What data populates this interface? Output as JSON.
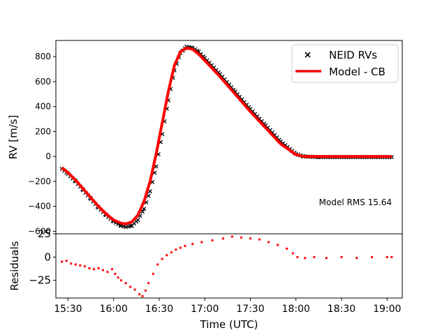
{
  "chart_data": [
    {
      "panel": "main",
      "type": "scatter+line",
      "xlabel": "",
      "ylabel": "RV [m/s]",
      "xlim": [
        "15:22",
        "19:10"
      ],
      "ylim": [
        -620,
        930
      ],
      "y_ticks": [
        -600,
        -400,
        -200,
        0,
        200,
        400,
        600,
        800
      ],
      "y_tick_labels": [
        "−600",
        "−400",
        "−200",
        "0",
        "200",
        "400",
        "600",
        "800"
      ],
      "annotation": "Model RMS 15.64",
      "legend": {
        "placement": "top-right",
        "entries": [
          "NEID RVs",
          "Model - CB"
        ]
      },
      "series": [
        {
          "name": "NEID RVs",
          "marker": "x",
          "color": "#000000",
          "points": [
            [
              "15:26",
              -100
            ],
            [
              "15:30",
              -140
            ],
            [
              "15:35",
              -200
            ],
            [
              "15:40",
              -270
            ],
            [
              "15:45",
              -340
            ],
            [
              "15:50",
              -410
            ],
            [
              "15:55",
              -470
            ],
            [
              "16:00",
              -520
            ],
            [
              "16:05",
              -555
            ],
            [
              "16:08",
              -565
            ],
            [
              "16:12",
              -555
            ],
            [
              "16:16",
              -510
            ],
            [
              "16:20",
              -420
            ],
            [
              "16:24",
              -280
            ],
            [
              "16:28",
              -80
            ],
            [
              "16:32",
              180
            ],
            [
              "16:36",
              450
            ],
            [
              "16:40",
              690
            ],
            [
              "16:44",
              830
            ],
            [
              "16:48",
              880
            ],
            [
              "16:52",
              870
            ],
            [
              "16:56",
              840
            ],
            [
              "17:00",
              790
            ],
            [
              "17:10",
              660
            ],
            [
              "17:20",
              520
            ],
            [
              "17:30",
              380
            ],
            [
              "17:40",
              250
            ],
            [
              "17:50",
              120
            ],
            [
              "18:00",
              20
            ],
            [
              "18:05",
              0
            ],
            [
              "18:15",
              -5
            ],
            [
              "18:30",
              -5
            ],
            [
              "18:45",
              -5
            ],
            [
              "19:00",
              -5
            ],
            [
              "19:03",
              -5
            ]
          ]
        },
        {
          "name": "Model - CB",
          "marker": "line",
          "color": "#ff0000",
          "points": [
            [
              "15:26",
              -90
            ],
            [
              "15:30",
              -130
            ],
            [
              "15:35",
              -190
            ],
            [
              "15:40",
              -260
            ],
            [
              "15:45",
              -330
            ],
            [
              "15:50",
              -400
            ],
            [
              "15:55",
              -460
            ],
            [
              "16:00",
              -510
            ],
            [
              "16:05",
              -535
            ],
            [
              "16:08",
              -540
            ],
            [
              "16:12",
              -525
            ],
            [
              "16:16",
              -470
            ],
            [
              "16:20",
              -360
            ],
            [
              "16:24",
              -200
            ],
            [
              "16:28",
              20
            ],
            [
              "16:32",
              270
            ],
            [
              "16:36",
              520
            ],
            [
              "16:40",
              730
            ],
            [
              "16:44",
              840
            ],
            [
              "16:48",
              870
            ],
            [
              "16:52",
              860
            ],
            [
              "16:56",
              820
            ],
            [
              "17:00",
              770
            ],
            [
              "17:10",
              640
            ],
            [
              "17:20",
              500
            ],
            [
              "17:30",
              360
            ],
            [
              "17:40",
              230
            ],
            [
              "17:50",
              100
            ],
            [
              "18:00",
              15
            ],
            [
              "18:05",
              0
            ],
            [
              "18:15",
              0
            ],
            [
              "18:30",
              0
            ],
            [
              "18:45",
              0
            ],
            [
              "19:00",
              0
            ],
            [
              "19:03",
              0
            ]
          ]
        }
      ]
    },
    {
      "panel": "residuals",
      "type": "scatter",
      "xlabel": "Time (UTC)",
      "ylabel": "Residuals",
      "xlim": [
        "15:22",
        "19:10"
      ],
      "ylim": [
        -44,
        25
      ],
      "y_ticks": [
        -25,
        0,
        25
      ],
      "y_tick_labels": [
        "−25",
        "0",
        "25"
      ],
      "x_ticks": [
        "15:30",
        "16:00",
        "16:30",
        "17:00",
        "17:30",
        "18:00",
        "18:30",
        "19:00"
      ],
      "series": [
        {
          "name": "Residuals",
          "marker": "square",
          "color": "#ff0000",
          "points": [
            [
              "15:26",
              -5
            ],
            [
              "15:29",
              -4
            ],
            [
              "15:32",
              -7
            ],
            [
              "15:35",
              -8
            ],
            [
              "15:38",
              -9
            ],
            [
              "15:41",
              -10
            ],
            [
              "15:44",
              -12
            ],
            [
              "15:47",
              -13
            ],
            [
              "15:50",
              -12
            ],
            [
              "15:53",
              -14
            ],
            [
              "15:56",
              -16
            ],
            [
              "15:59",
              -13
            ],
            [
              "16:01",
              -18
            ],
            [
              "16:03",
              -22
            ],
            [
              "16:05",
              -25
            ],
            [
              "16:08",
              -28
            ],
            [
              "16:11",
              -32
            ],
            [
              "16:14",
              -35
            ],
            [
              "16:17",
              -40
            ],
            [
              "16:19",
              -42
            ],
            [
              "16:21",
              -36
            ],
            [
              "16:23",
              -28
            ],
            [
              "16:26",
              -18
            ],
            [
              "16:29",
              -8
            ],
            [
              "16:32",
              -2
            ],
            [
              "16:35",
              2
            ],
            [
              "16:38",
              5
            ],
            [
              "16:41",
              8
            ],
            [
              "16:44",
              10
            ],
            [
              "16:47",
              12
            ],
            [
              "16:52",
              14
            ],
            [
              "16:58",
              16
            ],
            [
              "17:05",
              18
            ],
            [
              "17:12",
              20
            ],
            [
              "17:18",
              22
            ],
            [
              "17:24",
              21
            ],
            [
              "17:30",
              20
            ],
            [
              "17:36",
              19
            ],
            [
              "17:42",
              16
            ],
            [
              "17:48",
              13
            ],
            [
              "17:54",
              9
            ],
            [
              "17:58",
              4
            ],
            [
              "18:01",
              0
            ],
            [
              "18:06",
              -1
            ],
            [
              "18:12",
              0
            ],
            [
              "18:20",
              -1
            ],
            [
              "18:30",
              0
            ],
            [
              "18:40",
              -1
            ],
            [
              "18:50",
              0
            ],
            [
              "19:00",
              0
            ],
            [
              "19:03",
              0
            ]
          ]
        }
      ]
    }
  ]
}
